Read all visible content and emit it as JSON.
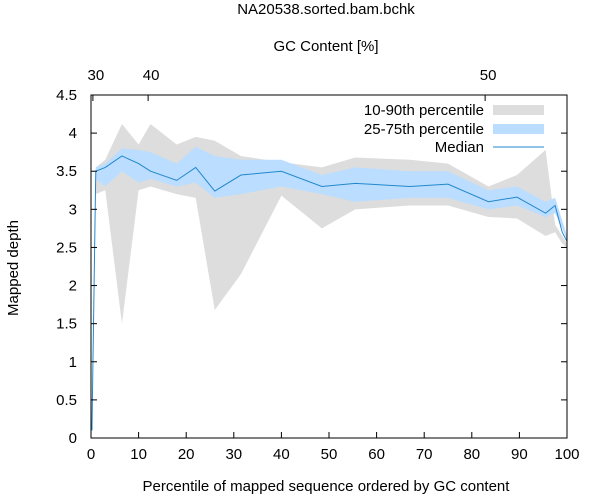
{
  "chart_data": {
    "type": "area",
    "title": "NA20538.sorted.bam.bchk",
    "xlabel": "Percentile of mapped sequence ordered by GC content",
    "ylabel": "Mapped depth",
    "x2label": "GC Content [%]",
    "xlim": [
      0,
      100
    ],
    "ylim": [
      0,
      4.5
    ],
    "x_ticks": [
      0,
      10,
      20,
      30,
      40,
      50,
      60,
      70,
      80,
      90,
      100
    ],
    "y_ticks": [
      0,
      0.5,
      1,
      1.5,
      2,
      2.5,
      3,
      3.5,
      4,
      4.5
    ],
    "x_tick_labels": [
      "0",
      "10",
      "20",
      "30",
      "40",
      "50",
      "60",
      "70",
      "80",
      "90",
      "100"
    ],
    "y_tick_labels": [
      "0",
      "0.5",
      "1",
      "1.5",
      "2",
      "2.5",
      "3",
      "3.5",
      "4",
      "4.5"
    ],
    "x2_ticks": [
      {
        "label": "30",
        "x": 0.4
      },
      {
        "label": "40",
        "x": 12.0
      },
      {
        "label": "50",
        "x": 82.8
      }
    ],
    "grid": false,
    "legend_position": "top-right",
    "x": [
      0.2,
      1.0,
      3.0,
      6.5,
      10.0,
      12.5,
      18.0,
      22.0,
      26.0,
      31.5,
      40.0,
      48.5,
      55.5,
      67.0,
      75.0,
      83.5,
      89.5,
      95.5,
      97.5,
      99.0,
      100.0
    ],
    "series": [
      {
        "name": "10-90th percentile",
        "type": "band",
        "color": "#dddddd",
        "low": [
          0.0,
          3.2,
          3.25,
          1.5,
          3.25,
          3.3,
          3.2,
          3.15,
          1.68,
          2.15,
          3.18,
          2.75,
          3.0,
          3.05,
          3.05,
          2.9,
          2.88,
          2.65,
          2.7,
          2.55,
          2.5
        ],
        "high": [
          0.3,
          3.55,
          3.65,
          4.12,
          3.85,
          4.12,
          3.85,
          3.95,
          3.9,
          3.7,
          3.62,
          3.55,
          3.68,
          3.65,
          3.6,
          3.3,
          3.45,
          3.78,
          2.8,
          2.65,
          2.55
        ]
      },
      {
        "name": "25-75th percentile",
        "type": "band",
        "color": "#bbddff",
        "low": [
          0.0,
          3.4,
          3.3,
          3.5,
          3.35,
          3.4,
          3.3,
          3.35,
          3.15,
          3.2,
          3.3,
          3.2,
          3.1,
          3.15,
          3.15,
          3.0,
          3.05,
          2.9,
          2.95,
          2.75,
          2.6
        ],
        "high": [
          0.2,
          3.55,
          3.6,
          3.8,
          3.78,
          3.75,
          3.6,
          3.82,
          3.7,
          3.65,
          3.65,
          3.45,
          3.55,
          3.5,
          3.5,
          3.25,
          3.3,
          3.1,
          3.15,
          2.85,
          2.65
        ]
      },
      {
        "name": "Median",
        "type": "line",
        "color": "#2288cc",
        "values": [
          0.1,
          3.5,
          3.55,
          3.7,
          3.6,
          3.5,
          3.38,
          3.55,
          3.24,
          3.45,
          3.5,
          3.3,
          3.34,
          3.3,
          3.33,
          3.1,
          3.16,
          2.95,
          3.05,
          2.7,
          2.58
        ]
      }
    ]
  }
}
